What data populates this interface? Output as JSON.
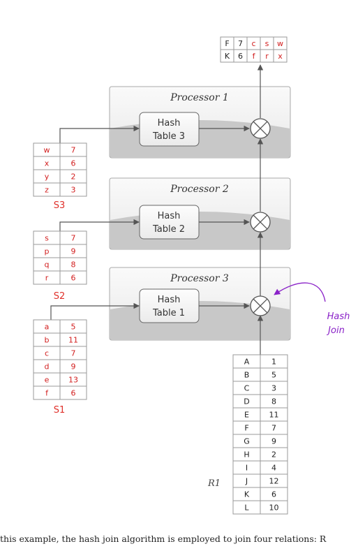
{
  "processors": [
    {
      "title": "Processor 1",
      "hash_line1": "Hash",
      "hash_line2": "Table 3"
    },
    {
      "title": "Processor 2",
      "hash_line1": "Hash",
      "hash_line2": "Table 2"
    },
    {
      "title": "Processor 3",
      "hash_line1": "Hash",
      "hash_line2": "Table 1"
    }
  ],
  "relations": {
    "S3": {
      "label": "S3",
      "rows": [
        [
          "w",
          "7"
        ],
        [
          "x",
          "6"
        ],
        [
          "y",
          "2"
        ],
        [
          "z",
          "3"
        ]
      ]
    },
    "S2": {
      "label": "S2",
      "rows": [
        [
          "s",
          "7"
        ],
        [
          "p",
          "9"
        ],
        [
          "q",
          "8"
        ],
        [
          "r",
          "6"
        ]
      ]
    },
    "S1": {
      "label": "S1",
      "rows": [
        [
          "a",
          "5"
        ],
        [
          "b",
          "11"
        ],
        [
          "c",
          "7"
        ],
        [
          "d",
          "9"
        ],
        [
          "e",
          "13"
        ],
        [
          "f",
          "6"
        ]
      ]
    },
    "R1": {
      "label": "R1",
      "rows": [
        [
          "A",
          "1"
        ],
        [
          "B",
          "5"
        ],
        [
          "C",
          "3"
        ],
        [
          "D",
          "8"
        ],
        [
          "E",
          "11"
        ],
        [
          "F",
          "7"
        ],
        [
          "G",
          "9"
        ],
        [
          "H",
          "2"
        ],
        [
          "I",
          "4"
        ],
        [
          "J",
          "12"
        ],
        [
          "K",
          "6"
        ],
        [
          "L",
          "10"
        ]
      ]
    }
  },
  "output_table": {
    "rows": [
      [
        "F",
        "7",
        "c",
        "s",
        "w"
      ],
      [
        "K",
        "6",
        "f",
        "r",
        "x"
      ]
    ]
  },
  "annotation": {
    "line1": "Hash",
    "line2": "Join"
  },
  "caption": "this example, the hash join algorithm is employed to join four relations: R",
  "colors": {
    "red": "#d21e1e",
    "purple": "#8a22c8",
    "arrow": "#555555"
  }
}
